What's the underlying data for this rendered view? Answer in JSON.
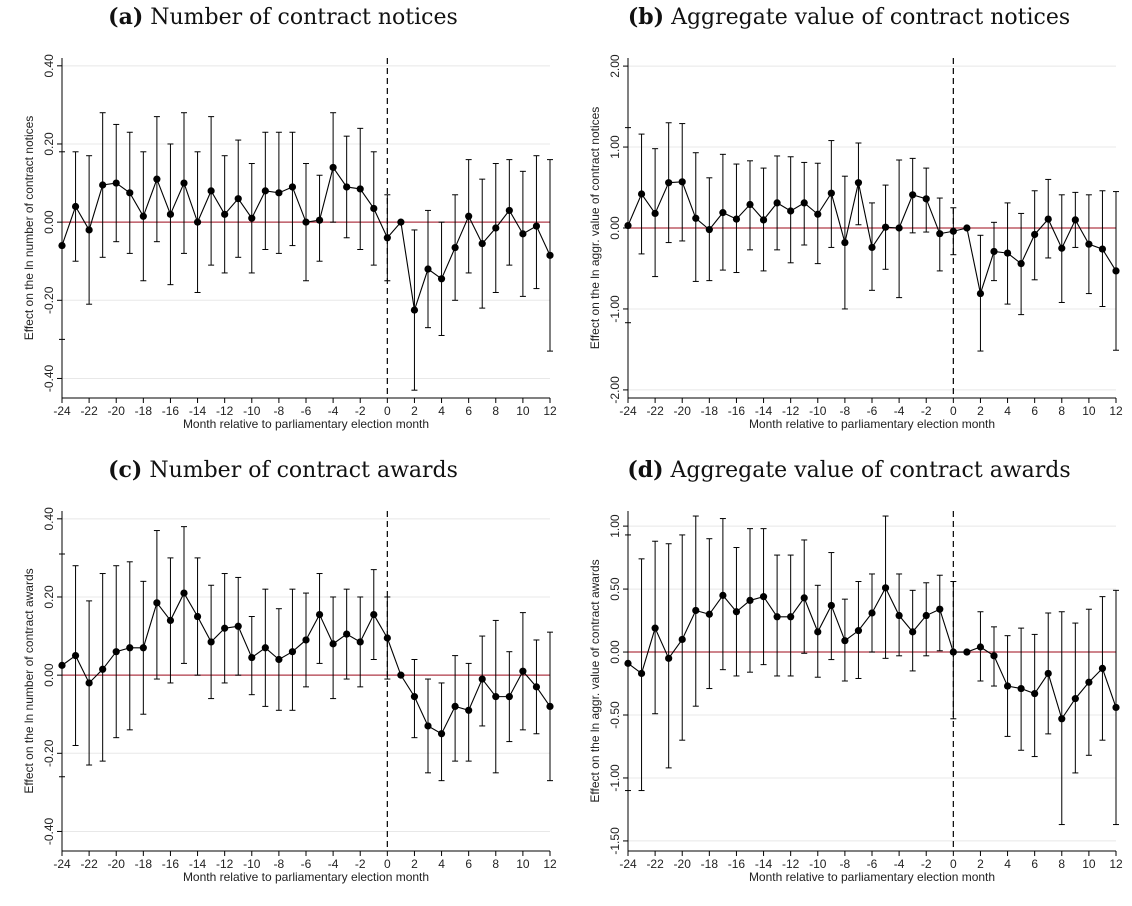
{
  "colors": {
    "zero_line": "#b03a48",
    "points": "#000000",
    "grid": "#e8e8e8"
  },
  "chart_data": [
    {
      "type": "line",
      "panel_label": "(a)",
      "title": "Number of contract notices",
      "xlabel": "Month relative to parliamentary election month",
      "ylabel": "Effect on the ln number of contract notices",
      "xlim": [
        -24,
        12
      ],
      "ylim": [
        -0.45,
        0.42
      ],
      "xticks": [
        -24,
        -22,
        -20,
        -18,
        -16,
        -14,
        -12,
        -10,
        -8,
        -6,
        -4,
        -2,
        0,
        2,
        4,
        6,
        8,
        10,
        12
      ],
      "yticks": [
        -0.4,
        -0.2,
        0.0,
        0.2,
        0.4
      ],
      "ytick_labels": [
        "-0.40",
        "-0.20",
        "0.00",
        "0.20",
        "0.40"
      ],
      "x": [
        -24,
        -23,
        -22,
        -21,
        -20,
        -19,
        -18,
        -17,
        -16,
        -15,
        -14,
        -13,
        -12,
        -11,
        -10,
        -9,
        -8,
        -7,
        -6,
        -5,
        -4,
        -3,
        -2,
        -1,
        0,
        1,
        2,
        3,
        4,
        5,
        6,
        7,
        8,
        9,
        10,
        11,
        12
      ],
      "y": [
        -0.06,
        0.04,
        -0.02,
        0.095,
        0.1,
        0.075,
        0.015,
        0.11,
        0.02,
        0.1,
        0.0,
        0.08,
        0.02,
        0.06,
        0.01,
        0.08,
        0.075,
        0.09,
        0.0,
        0.005,
        0.14,
        0.09,
        0.085,
        0.035,
        -0.04,
        0.0,
        -0.225,
        -0.12,
        -0.145,
        -0.065,
        0.015,
        -0.055,
        -0.015,
        0.03,
        -0.03,
        -0.01,
        -0.085
      ],
      "ci_low": [
        -0.3,
        -0.1,
        -0.21,
        -0.09,
        -0.05,
        -0.08,
        -0.15,
        -0.05,
        -0.16,
        -0.08,
        -0.18,
        -0.11,
        -0.13,
        -0.09,
        -0.13,
        -0.07,
        -0.08,
        -0.06,
        -0.15,
        -0.1,
        0.0,
        -0.04,
        -0.07,
        -0.11,
        -0.15,
        null,
        -0.43,
        -0.27,
        -0.29,
        -0.2,
        -0.13,
        -0.22,
        -0.18,
        -0.11,
        -0.19,
        -0.17,
        -0.33
      ],
      "ci_high": [
        0.18,
        0.18,
        0.17,
        0.28,
        0.25,
        0.23,
        0.18,
        0.27,
        0.2,
        0.28,
        0.18,
        0.27,
        0.17,
        0.21,
        0.15,
        0.23,
        0.23,
        0.23,
        0.15,
        0.12,
        0.28,
        0.22,
        0.24,
        0.18,
        0.07,
        null,
        -0.02,
        0.03,
        0.0,
        0.07,
        0.16,
        0.11,
        0.15,
        0.16,
        0.13,
        0.17,
        0.16
      ]
    },
    {
      "type": "line",
      "panel_label": "(b)",
      "title": "Aggregate value of contract notices",
      "xlabel": "Month relative to parliamentary election month",
      "ylabel": "Effect on the ln aggr. value of contract notices",
      "xlim": [
        -24,
        12
      ],
      "ylim": [
        -2.1,
        2.1
      ],
      "xticks": [
        -24,
        -22,
        -20,
        -18,
        -16,
        -14,
        -12,
        -10,
        -8,
        -6,
        -4,
        -2,
        0,
        2,
        4,
        6,
        8,
        10,
        12
      ],
      "yticks": [
        -2,
        -1,
        0,
        1,
        2
      ],
      "ytick_labels": [
        "-2.00",
        "-1.00",
        "0.00",
        "1.00",
        "2.00"
      ],
      "x": [
        -24,
        -23,
        -22,
        -21,
        -20,
        -19,
        -18,
        -17,
        -16,
        -15,
        -14,
        -13,
        -12,
        -11,
        -10,
        -9,
        -8,
        -7,
        -6,
        -5,
        -4,
        -3,
        -2,
        -1,
        0,
        1,
        2,
        3,
        4,
        5,
        6,
        7,
        8,
        9,
        10,
        11,
        12
      ],
      "y": [
        0.03,
        0.42,
        0.18,
        0.56,
        0.57,
        0.12,
        -0.02,
        0.19,
        0.11,
        0.29,
        0.1,
        0.31,
        0.21,
        0.31,
        0.17,
        0.43,
        -0.18,
        0.56,
        -0.24,
        0.01,
        0.0,
        0.41,
        0.36,
        -0.07,
        -0.04,
        0.0,
        -0.81,
        -0.29,
        -0.31,
        -0.44,
        -0.08,
        0.11,
        -0.25,
        0.1,
        -0.2,
        -0.26,
        -0.53
      ],
      "ci_low": [
        -1.17,
        -0.32,
        -0.6,
        -0.18,
        -0.16,
        -0.66,
        -0.65,
        -0.52,
        -0.55,
        -0.27,
        -0.53,
        -0.27,
        -0.43,
        -0.21,
        -0.44,
        -0.24,
        -1.0,
        0.04,
        -0.77,
        -0.51,
        -0.86,
        -0.06,
        -0.05,
        -0.53,
        -0.33,
        null,
        -1.52,
        -0.65,
        -0.94,
        -1.07,
        -0.64,
        -0.37,
        -0.92,
        -0.24,
        -0.81,
        -0.97,
        -1.51
      ],
      "ci_high": [
        1.24,
        1.16,
        0.98,
        1.3,
        1.29,
        0.93,
        0.62,
        0.91,
        0.79,
        0.83,
        0.74,
        0.89,
        0.88,
        0.81,
        0.8,
        1.08,
        0.64,
        1.05,
        0.31,
        0.53,
        0.84,
        0.86,
        0.74,
        0.37,
        0.25,
        null,
        -0.09,
        0.07,
        0.31,
        0.18,
        0.46,
        0.6,
        0.41,
        0.44,
        0.41,
        0.46,
        0.45
      ]
    },
    {
      "type": "line",
      "panel_label": "(c)",
      "title": "Number of contract awards",
      "xlabel": "Month relative to parliamentary election month",
      "ylabel": "Effect on the ln number of contract awards",
      "xlim": [
        -24,
        12
      ],
      "ylim": [
        -0.45,
        0.42
      ],
      "xticks": [
        -24,
        -22,
        -20,
        -18,
        -16,
        -14,
        -12,
        -10,
        -8,
        -6,
        -4,
        -2,
        0,
        2,
        4,
        6,
        8,
        10,
        12
      ],
      "yticks": [
        -0.4,
        -0.2,
        0.0,
        0.2,
        0.4
      ],
      "ytick_labels": [
        "-0.40",
        "-0.20",
        "0.00",
        "0.20",
        "0.40"
      ],
      "x": [
        -24,
        -23,
        -22,
        -21,
        -20,
        -19,
        -18,
        -17,
        -16,
        -15,
        -14,
        -13,
        -12,
        -11,
        -10,
        -9,
        -8,
        -7,
        -6,
        -5,
        -4,
        -3,
        -2,
        -1,
        0,
        1,
        2,
        3,
        4,
        5,
        6,
        7,
        8,
        9,
        10,
        11,
        12
      ],
      "y": [
        0.025,
        0.05,
        -0.02,
        0.015,
        0.06,
        0.07,
        0.07,
        0.185,
        0.14,
        0.21,
        0.15,
        0.085,
        0.12,
        0.125,
        0.045,
        0.07,
        0.04,
        0.06,
        0.09,
        0.155,
        0.08,
        0.105,
        0.085,
        0.155,
        0.095,
        0.0,
        -0.055,
        -0.13,
        -0.15,
        -0.08,
        -0.09,
        -0.01,
        -0.055,
        -0.055,
        0.01,
        -0.03,
        -0.08
      ],
      "ci_low": [
        -0.26,
        -0.18,
        -0.23,
        -0.22,
        -0.16,
        -0.14,
        -0.1,
        -0.01,
        -0.02,
        0.03,
        0.0,
        -0.06,
        -0.02,
        0.0,
        -0.05,
        -0.08,
        -0.09,
        -0.09,
        -0.03,
        0.03,
        -0.06,
        -0.01,
        -0.03,
        0.04,
        -0.01,
        null,
        -0.16,
        -0.25,
        -0.27,
        -0.22,
        -0.22,
        -0.13,
        -0.25,
        -0.17,
        -0.14,
        -0.15,
        -0.27
      ],
      "ci_high": [
        0.31,
        0.28,
        0.19,
        0.26,
        0.28,
        0.29,
        0.24,
        0.37,
        0.3,
        0.38,
        0.3,
        0.23,
        0.26,
        0.25,
        0.15,
        0.22,
        0.17,
        0.22,
        0.21,
        0.26,
        0.2,
        0.22,
        0.2,
        0.27,
        0.2,
        null,
        0.04,
        -0.01,
        -0.02,
        0.05,
        0.03,
        0.1,
        0.14,
        0.06,
        0.16,
        0.09,
        0.11
      ]
    },
    {
      "type": "line",
      "panel_label": "(d)",
      "title": "Aggregate value of contract awards",
      "xlabel": "Month relative to parliamentary election month",
      "ylabel": "Effect on the ln aggr. value of contract awards",
      "xlim": [
        -24,
        12
      ],
      "ylim": [
        -1.58,
        1.12
      ],
      "xticks": [
        -24,
        -22,
        -20,
        -18,
        -16,
        -14,
        -12,
        -10,
        -8,
        -6,
        -4,
        -2,
        0,
        2,
        4,
        6,
        8,
        10,
        12
      ],
      "yticks": [
        -1.5,
        -1.0,
        -0.5,
        0.0,
        0.5,
        1.0
      ],
      "ytick_labels": [
        "-1.50",
        "-1.00",
        "-0.50",
        "0.00",
        "0.50",
        "1.00"
      ],
      "x": [
        -24,
        -23,
        -22,
        -21,
        -20,
        -19,
        -18,
        -17,
        -16,
        -15,
        -14,
        -13,
        -12,
        -11,
        -10,
        -9,
        -8,
        -7,
        -6,
        -5,
        -4,
        -3,
        -2,
        -1,
        0,
        1,
        2,
        3,
        4,
        5,
        6,
        7,
        8,
        9,
        10,
        11,
        12
      ],
      "y": [
        -0.09,
        -0.17,
        0.19,
        -0.05,
        0.1,
        0.33,
        0.3,
        0.45,
        0.32,
        0.41,
        0.44,
        0.28,
        0.28,
        0.43,
        0.16,
        0.37,
        0.09,
        0.17,
        0.31,
        0.51,
        0.29,
        0.16,
        0.29,
        0.34,
        0.0,
        0.0,
        0.04,
        -0.03,
        -0.27,
        -0.29,
        -0.33,
        -0.17,
        -0.53,
        -0.37,
        -0.24,
        -0.13,
        -0.44
      ],
      "ci_low": [
        -1.1,
        -1.1,
        -0.49,
        -0.92,
        -0.7,
        -0.43,
        -0.29,
        -0.14,
        -0.19,
        -0.16,
        -0.1,
        -0.19,
        -0.19,
        -0.01,
        -0.2,
        -0.06,
        -0.23,
        -0.21,
        0.0,
        -0.05,
        -0.03,
        -0.15,
        -0.03,
        0.01,
        -0.53,
        null,
        -0.23,
        -0.27,
        -0.67,
        -0.78,
        -0.83,
        -0.65,
        -1.37,
        -0.96,
        -0.82,
        -0.7,
        -1.37
      ],
      "ci_high": [
        0.93,
        0.74,
        0.88,
        0.86,
        0.93,
        1.08,
        0.9,
        1.06,
        0.83,
        0.98,
        0.98,
        0.77,
        0.77,
        0.89,
        0.53,
        0.79,
        0.42,
        0.56,
        0.62,
        1.08,
        0.62,
        0.49,
        0.55,
        0.61,
        0.56,
        null,
        0.32,
        0.2,
        0.13,
        0.19,
        0.14,
        0.31,
        0.32,
        0.23,
        0.34,
        0.44,
        0.49
      ]
    }
  ]
}
